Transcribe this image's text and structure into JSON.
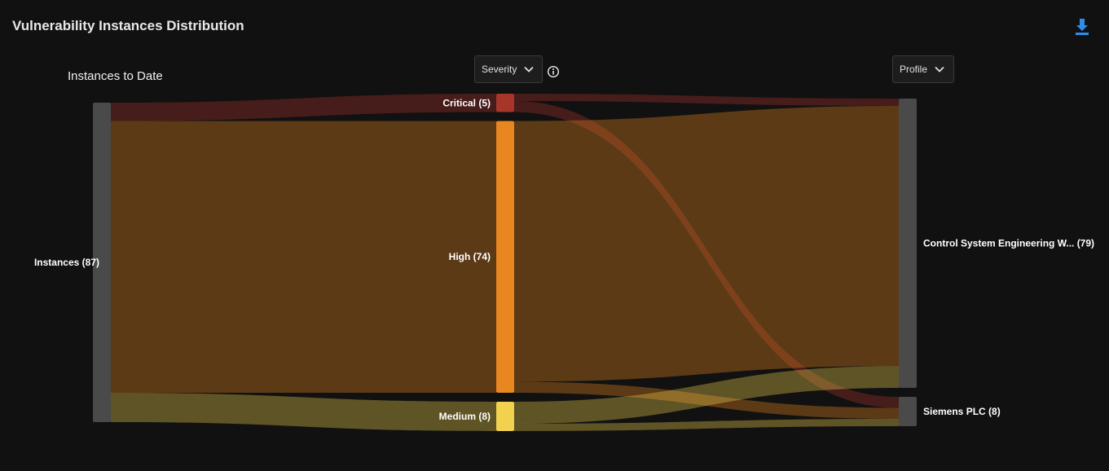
{
  "header": {
    "title": "Vulnerability Instances Distribution",
    "download_icon": "download-icon"
  },
  "controls": {
    "severity_label": "Severity",
    "profile_label": "Profile",
    "info_icon": "info-icon",
    "chevron_icon": "chevron-down-icon"
  },
  "chart_data": {
    "type": "sankey",
    "title": "Instances to Date",
    "columns": [
      [
        {
          "id": "instances",
          "name": "Instances",
          "value": 87,
          "color": "#4a4a4a"
        }
      ],
      [
        {
          "id": "critical",
          "name": "Critical",
          "value": 5,
          "color": "#a8352a"
        },
        {
          "id": "high",
          "name": "High",
          "value": 74,
          "color": "#e8861f"
        },
        {
          "id": "medium",
          "name": "Medium",
          "value": 8,
          "color": "#f2d14e"
        }
      ],
      [
        {
          "id": "cse",
          "name": "Control System Engineering W...",
          "value": 79,
          "color": "#4a4a4a"
        },
        {
          "id": "plc",
          "name": "Siemens PLC",
          "value": 8,
          "color": "#4a4a4a"
        }
      ]
    ],
    "links": [
      {
        "source": "instances",
        "target": "critical",
        "value": 5
      },
      {
        "source": "instances",
        "target": "high",
        "value": 74
      },
      {
        "source": "instances",
        "target": "medium",
        "value": 8
      },
      {
        "source": "critical",
        "target": "cse",
        "value": 2
      },
      {
        "source": "critical",
        "target": "plc",
        "value": 3
      },
      {
        "source": "high",
        "target": "cse",
        "value": 71
      },
      {
        "source": "high",
        "target": "plc",
        "value": 3
      },
      {
        "source": "medium",
        "target": "cse",
        "value": 6
      },
      {
        "source": "medium",
        "target": "plc",
        "value": 2
      }
    ]
  }
}
